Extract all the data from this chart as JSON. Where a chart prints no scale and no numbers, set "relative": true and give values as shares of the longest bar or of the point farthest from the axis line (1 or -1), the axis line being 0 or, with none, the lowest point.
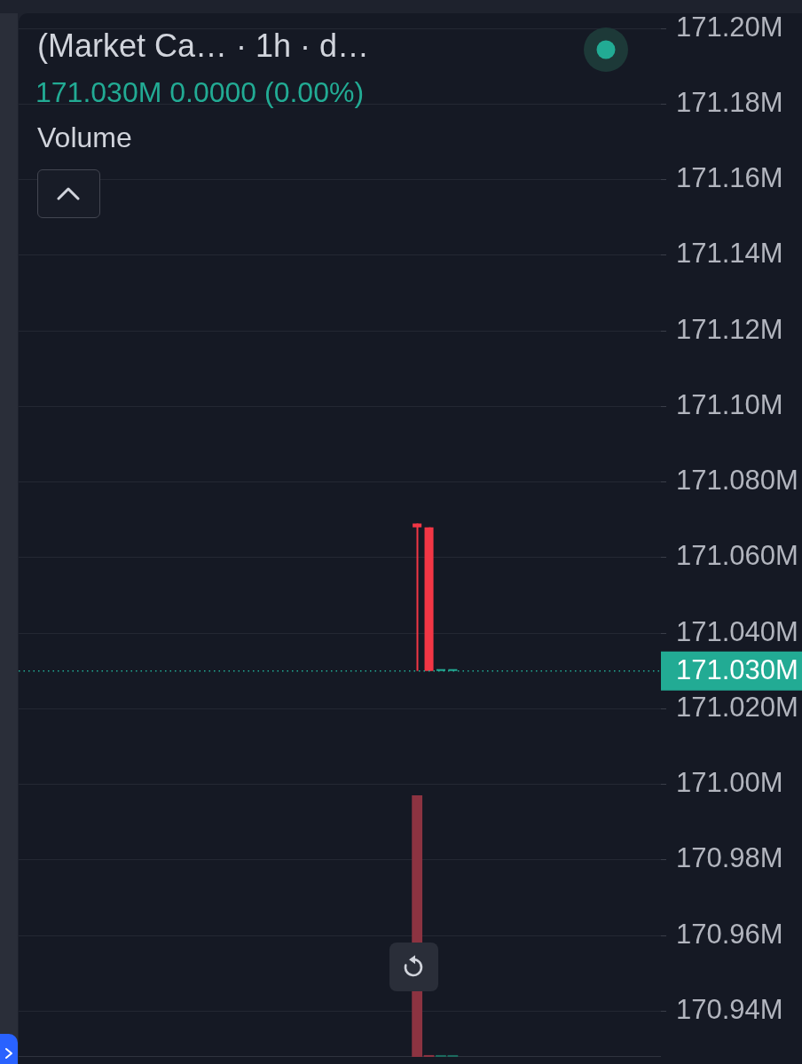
{
  "chart_data": [
    {
      "type": "candlestick",
      "title": "(Market Ca… · 1h · d…",
      "subtitle": "171.030M 0.0000 (0.00%)",
      "categories": [
        null,
        null,
        null,
        null,
        null,
        null,
        null,
        null,
        null,
        null,
        null,
        null,
        null,
        null,
        null,
        null,
        null,
        null,
        null,
        null,
        null,
        null,
        null,
        null,
        null,
        null,
        null,
        null,
        null,
        null,
        null,
        null,
        null,
        null,
        null,
        null,
        null,
        null,
        null,
        null,
        null,
        null,
        null,
        null,
        null,
        null,
        null,
        null,
        null,
        null,
        null,
        null,
        null,
        null
      ],
      "ohlc": [
        null,
        null,
        null,
        null,
        null,
        null,
        null,
        null,
        null,
        null,
        null,
        null,
        null,
        null,
        null,
        null,
        null,
        null,
        null,
        null,
        null,
        null,
        null,
        null,
        null,
        null,
        null,
        null,
        null,
        null,
        null,
        null,
        null,
        [
          171.069,
          171.069,
          171.03,
          171.068
        ],
        [
          171.068,
          171.068,
          171.03,
          171.03
        ],
        [
          171.03,
          171.03,
          171.03,
          171.03
        ],
        [
          171.03,
          171.03,
          171.03,
          171.03
        ],
        null,
        null,
        null,
        null,
        null,
        null,
        null,
        null,
        null,
        null,
        null,
        null,
        null,
        null,
        null,
        null,
        null
      ],
      "colors": [
        null,
        null,
        null,
        null,
        null,
        null,
        null,
        null,
        null,
        null,
        null,
        null,
        null,
        null,
        null,
        null,
        null,
        null,
        null,
        null,
        null,
        null,
        null,
        null,
        null,
        null,
        null,
        null,
        null,
        null,
        null,
        null,
        null,
        "#f23645",
        "#f23645",
        "#22ab94",
        "#22ab94",
        null,
        null,
        null,
        null,
        null,
        null,
        null,
        null,
        null,
        null,
        null,
        null,
        null,
        null,
        null,
        null,
        null
      ],
      "ylim": [
        170.926,
        171.204
      ],
      "yticks": [
        {
          "value": 171.2,
          "label": "171.20M"
        },
        {
          "value": 171.18,
          "label": "171.18M"
        },
        {
          "value": 171.16,
          "label": "171.16M"
        },
        {
          "value": 171.14,
          "label": "171.14M"
        },
        {
          "value": 171.12,
          "label": "171.12M"
        },
        {
          "value": 171.1,
          "label": "171.10M"
        },
        {
          "value": 171.08,
          "label": "171.080M"
        },
        {
          "value": 171.06,
          "label": "171.060M"
        },
        {
          "value": 171.04,
          "label": "171.040M"
        },
        {
          "value": 171.02,
          "label": "171.020M"
        },
        {
          "value": 171,
          "label": "171.00M"
        },
        {
          "value": 170.98,
          "label": "170.98M"
        },
        {
          "value": 170.96,
          "label": "170.96M"
        },
        {
          "value": 170.94,
          "label": "170.94M"
        }
      ],
      "grid": "y",
      "tick_labels": "y",
      "ref_lines": [
        {
          "axis": "y",
          "value": 171.03,
          "label": "171.030M",
          "color": "#22ab94",
          "line_style": "dotted"
        }
      ]
    },
    {
      "type": "bar",
      "title": "Volume",
      "relative": true,
      "tick_labels": false,
      "categories": [
        null,
        null,
        null,
        null,
        null,
        null,
        null,
        null,
        null,
        null,
        null,
        null,
        null,
        null,
        null,
        null,
        null,
        null,
        null,
        null,
        null,
        null,
        null,
        null,
        null,
        null,
        null,
        null,
        null,
        null,
        null,
        null,
        null,
        null,
        null,
        null,
        null,
        null,
        null,
        null,
        null,
        null,
        null,
        null,
        null,
        null,
        null,
        null,
        null,
        null,
        null,
        null,
        null,
        null
      ],
      "values": [
        null,
        null,
        null,
        null,
        null,
        null,
        null,
        null,
        null,
        null,
        null,
        null,
        null,
        null,
        null,
        null,
        null,
        null,
        null,
        null,
        null,
        null,
        null,
        null,
        null,
        null,
        null,
        null,
        null,
        null,
        null,
        null,
        null,
        1,
        0.007,
        0.007,
        0.007,
        null,
        null,
        null,
        null,
        null,
        null,
        null,
        null,
        null,
        null,
        null,
        null,
        null,
        null,
        null,
        null,
        null
      ],
      "colors": [
        null,
        null,
        null,
        null,
        null,
        null,
        null,
        null,
        null,
        null,
        null,
        null,
        null,
        null,
        null,
        null,
        null,
        null,
        null,
        null,
        null,
        null,
        null,
        null,
        null,
        null,
        null,
        null,
        null,
        null,
        null,
        null,
        null,
        "#8c3341",
        "#8c3341",
        "#1c6b5f",
        "#1c6b5f",
        null,
        null,
        null,
        null,
        null,
        null,
        null,
        null,
        null,
        null,
        null,
        null,
        null,
        null,
        null,
        null,
        null
      ]
    }
  ]
}
